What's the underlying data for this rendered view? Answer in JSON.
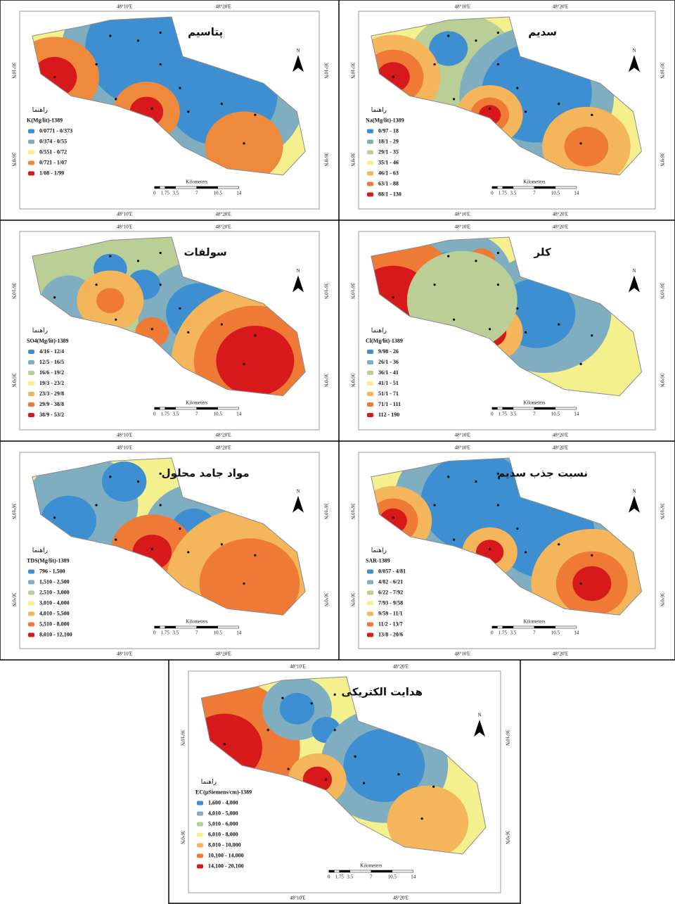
{
  "panels": [
    {
      "title": "پتاسیم",
      "legend_heading": "راهنما",
      "legend_title": "K(Mg/lit)-1389",
      "north": "N",
      "scale_unit": "Kilometers",
      "scale_ticks": [
        "0",
        "1.75",
        "3.5",
        "7",
        "10.5",
        "14"
      ],
      "coords": {
        "top": [
          "48°10'E",
          "48°20'E"
        ],
        "bottom": [
          "48°10'E",
          "48°20'E"
        ],
        "left": [
          "36°10'N",
          "36°0'N"
        ],
        "right": [
          "36°10'N",
          "36°0'N"
        ]
      },
      "classes": [
        {
          "label": "0/0771 - 0/373",
          "color": "#3d8fd1"
        },
        {
          "label": "0/374 - 0/55",
          "color": "#7eaec0"
        },
        {
          "label": "0/551 - 0/72",
          "color": "#f5f08e"
        },
        {
          "label": "0/721 - 1/07",
          "color": "#ef8a3c"
        },
        {
          "label": "1/08 - 1/99",
          "color": "#d7191c"
        }
      ]
    },
    {
      "title": "سدیم",
      "legend_heading": "راهنما",
      "legend_title": "Na(Mg/lit)-1389",
      "north": "N",
      "scale_unit": "Kilometers",
      "scale_ticks": [
        "0",
        "1.75",
        "3.5",
        "7",
        "10.5",
        "14"
      ],
      "coords": {
        "top": [
          "48°10'E",
          "48°20'E"
        ],
        "bottom": [
          "48°10'E",
          "48°20'E"
        ],
        "left": [
          "36°10'N",
          "36°0'N"
        ],
        "right": [
          "36°10'N",
          "36°0'N"
        ]
      },
      "classes": [
        {
          "label": "0/97 - 18",
          "color": "#3d8fd1"
        },
        {
          "label": "18/1 - 29",
          "color": "#7eaec0"
        },
        {
          "label": "29/1 - 35",
          "color": "#b9cf95"
        },
        {
          "label": "35/1 - 46",
          "color": "#f5f08e"
        },
        {
          "label": "46/1 - 63",
          "color": "#f5b55a"
        },
        {
          "label": "63/1 - 88",
          "color": "#ef7a35"
        },
        {
          "label": "88/1 - 130",
          "color": "#d7191c"
        }
      ]
    },
    {
      "title": "سولفات",
      "legend_heading": "راهنما",
      "legend_title": "SO4(Mg/lit)-1389",
      "north": "N",
      "scale_unit": "Kilometers",
      "scale_ticks": [
        "0",
        "1.75",
        "3.5",
        "7",
        "10.5",
        "14"
      ],
      "coords": {
        "top": [
          "48°10'E",
          "48°20'E"
        ],
        "bottom": [
          "48°10'E",
          "48°20'E"
        ],
        "left": [
          "36°10'N",
          "36°0'N"
        ],
        "right": [
          "36°10'N",
          "36°0'N"
        ]
      },
      "classes": [
        {
          "label": "4/16 - 12/4",
          "color": "#3d8fd1"
        },
        {
          "label": "12/5 - 16/5",
          "color": "#7eaec0"
        },
        {
          "label": "16/6 - 19/2",
          "color": "#b9cf95"
        },
        {
          "label": "19/3 - 23/2",
          "color": "#f5f08e"
        },
        {
          "label": "23/3 - 29/8",
          "color": "#f5b55a"
        },
        {
          "label": "29/9 - 38/8",
          "color": "#ef7a35"
        },
        {
          "label": "38/9 - 53/2",
          "color": "#d7191c"
        }
      ]
    },
    {
      "title": "کلر",
      "legend_heading": "راهنما",
      "legend_title": "Cl(Mg/lit)-1389",
      "north": "N",
      "scale_unit": "Kilometers",
      "scale_ticks": [
        "0",
        "1.75",
        "3.5",
        "7",
        "10.5",
        "14"
      ],
      "coords": {
        "top": [
          "48°10'E",
          "48°20'E"
        ],
        "bottom": [
          "48°10'E",
          "48°20'E"
        ],
        "left": [
          "36°10'N",
          "36°0'N"
        ],
        "right": [
          "36°10'N",
          "36°0'N"
        ]
      },
      "classes": [
        {
          "label": "9/98 - 26",
          "color": "#3d8fd1"
        },
        {
          "label": "26/1 - 36",
          "color": "#7eaec0"
        },
        {
          "label": "36/1 - 41",
          "color": "#b9cf95"
        },
        {
          "label": "41/1 - 51",
          "color": "#f5f08e"
        },
        {
          "label": "51/1 - 71",
          "color": "#f5b55a"
        },
        {
          "label": "71/1 - 111",
          "color": "#ef7a35"
        },
        {
          "label": "112 - 190",
          "color": "#d7191c"
        }
      ]
    },
    {
      "title": "مواد جامد محلول",
      "legend_heading": "راهنما",
      "legend_title": "TDS(Mg/lit)-1389",
      "north": "N",
      "scale_unit": "Kilometers",
      "scale_ticks": [
        "0",
        "1.75",
        "3.5",
        "7",
        "10.5",
        "14"
      ],
      "coords": {
        "top": [
          "48°10'E",
          "48°20'E"
        ],
        "bottom": [
          "48°10'E",
          "48°20'E"
        ],
        "left": [
          "36°10'N",
          "36°0'N"
        ],
        "right": [
          "36°10'N",
          "36°0'N"
        ]
      },
      "classes": [
        {
          "label": "796 - 1,500",
          "color": "#3d8fd1"
        },
        {
          "label": "1,510 - 2,500",
          "color": "#7eaec0"
        },
        {
          "label": "2,510 - 3,000",
          "color": "#b9cf95"
        },
        {
          "label": "3,010 - 4,000",
          "color": "#f5f08e"
        },
        {
          "label": "4,010 - 5,500",
          "color": "#f5b55a"
        },
        {
          "label": "5,510 - 8,000",
          "color": "#ef7a35"
        },
        {
          "label": "8,010 - 12,100",
          "color": "#d7191c"
        }
      ]
    },
    {
      "title": "نسبت جذب سدیم",
      "legend_heading": "راهنما",
      "legend_title": "SAR-1389",
      "north": "N",
      "scale_unit": "Kilometers",
      "scale_ticks": [
        "0",
        "1.75",
        "3.5",
        "7",
        "10.5",
        "14"
      ],
      "coords": {
        "top": [
          "48°10'E",
          "48°20'E"
        ],
        "bottom": [
          "48°10'E",
          "48°20'E"
        ],
        "left": [
          "36°10'N",
          "36°0'N"
        ],
        "right": [
          "36°10'N",
          "36°0'N"
        ]
      },
      "classes": [
        {
          "label": "0/057 - 4/81",
          "color": "#3d8fd1"
        },
        {
          "label": "4/82 - 6/21",
          "color": "#7eaec0"
        },
        {
          "label": "6/22 - 7/92",
          "color": "#b9cf95"
        },
        {
          "label": "7/93 - 9/58",
          "color": "#f5f08e"
        },
        {
          "label": "9/59 - 11/1",
          "color": "#f5b55a"
        },
        {
          "label": "11/2 - 13/7",
          "color": "#ef7a35"
        },
        {
          "label": "13/8 - 20/6",
          "color": "#d7191c"
        }
      ]
    },
    {
      "title": "هدایت الکتریکی",
      "legend_heading": "راهنما",
      "legend_title": "EC(µSiemens/cm)-1389",
      "north": "N",
      "scale_unit": "Kilometers",
      "scale_ticks": [
        "0",
        "1.75",
        "3.5",
        "7",
        "10.5",
        "14"
      ],
      "coords": {
        "top": [
          "48°10'E",
          "48°20'E"
        ],
        "bottom": [
          "48°10'E",
          "48°20'E"
        ],
        "left": [
          "36°10'N",
          "36°0'N"
        ],
        "right": [
          "36°10'N",
          "36°0'N"
        ]
      },
      "classes": [
        {
          "label": "1,600 - 4,000",
          "color": "#3d8fd1"
        },
        {
          "label": "4,010 - 5,000",
          "color": "#7eaec0"
        },
        {
          "label": "5,010 - 6,000",
          "color": "#b9cf95"
        },
        {
          "label": "6,010 - 8,000",
          "color": "#f5f08e"
        },
        {
          "label": "8,010 - 10,000",
          "color": "#f5b55a"
        },
        {
          "label": "10,100 - 14,000",
          "color": "#ef7a35"
        },
        {
          "label": "14,100 - 20,100",
          "color": "#d7191c"
        }
      ]
    }
  ]
}
